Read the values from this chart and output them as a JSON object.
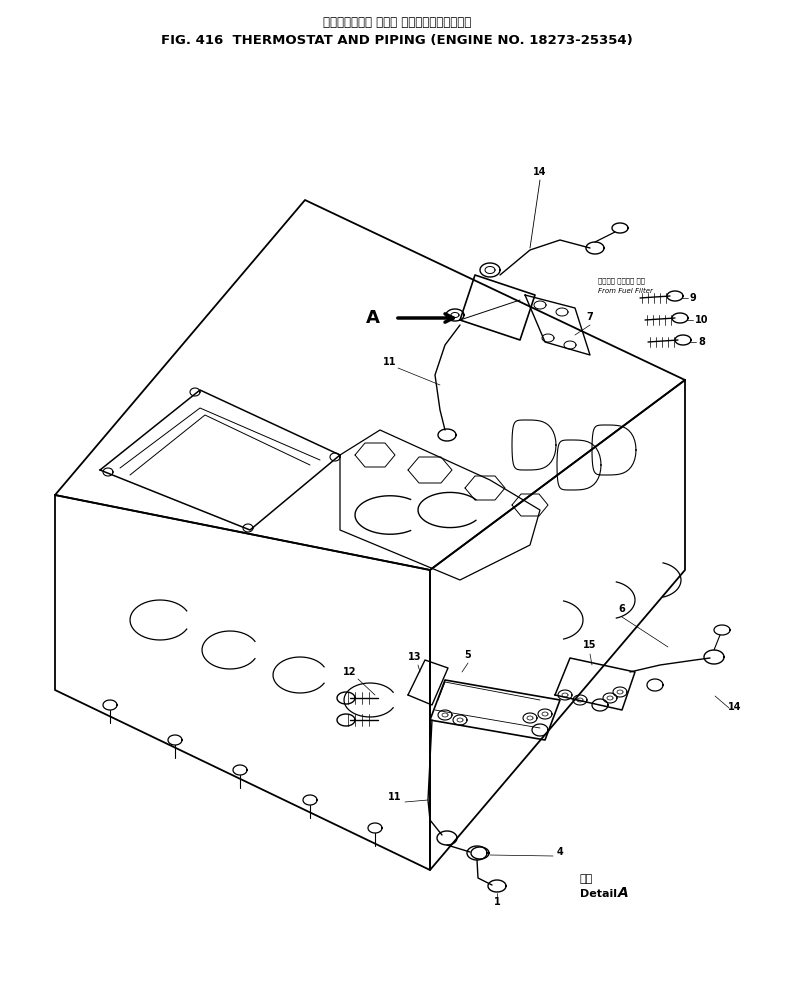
{
  "title_japanese": "サーモスタット および パイピング　適用号機",
  "title_english": "FIG. 416  THERMOSTAT AND PIPING (ENGINE NO. 18273-25354)",
  "bg_color": "#ffffff",
  "line_color": "#000000",
  "fig_width": 7.94,
  "fig_height": 9.89,
  "dpi": 100,
  "from_fuel_filter_jp": "フュエル フィルタ より",
  "from_fuel_filter_en": "From Fuel Filter",
  "detail_jp": "詳細",
  "detail_en": "Detail"
}
